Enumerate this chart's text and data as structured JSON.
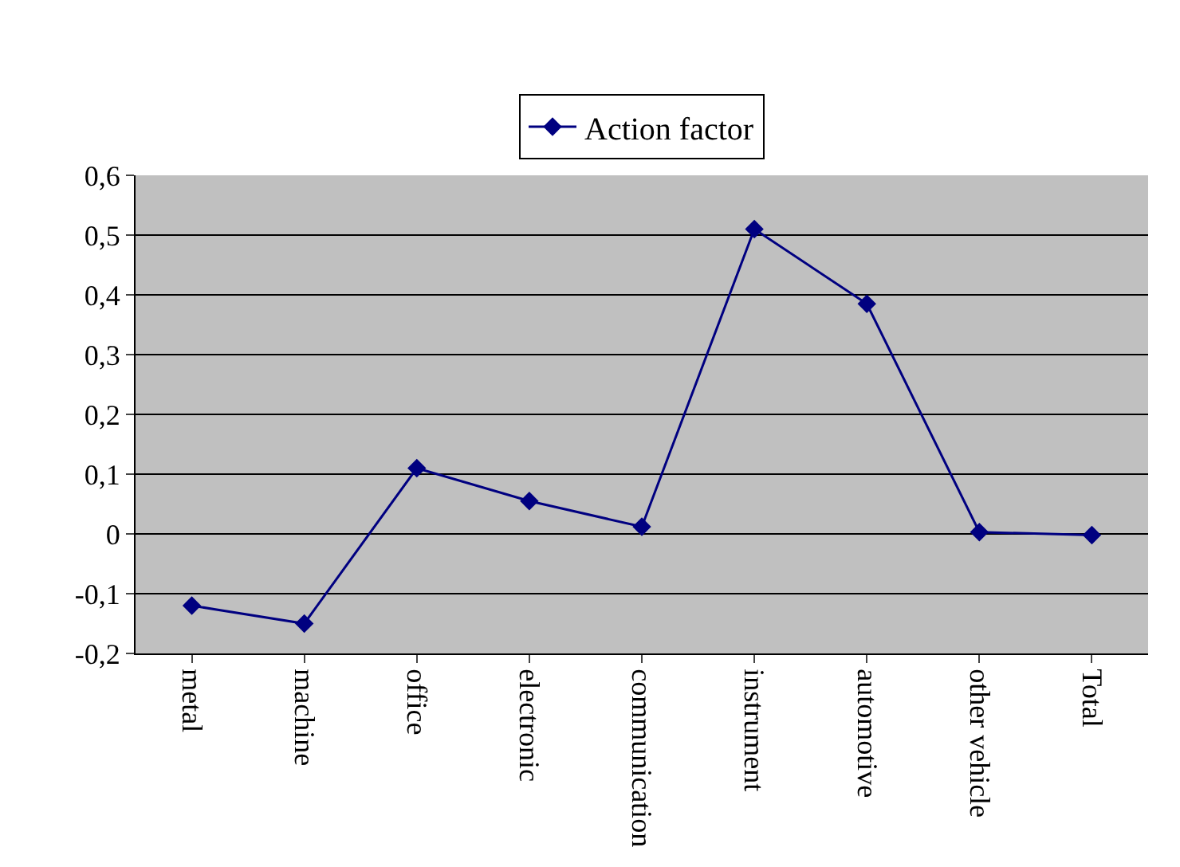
{
  "chart_data": {
    "type": "line",
    "categories": [
      "metal",
      "machine",
      "office",
      "electronic",
      "communication",
      "instrument",
      "automotive",
      "other vehicle",
      "Total"
    ],
    "series": [
      {
        "name": "Action factor",
        "color": "#000080",
        "values": [
          -0.12,
          -0.15,
          0.11,
          0.055,
          0.012,
          0.51,
          0.385,
          0.003,
          -0.002
        ]
      }
    ],
    "ylim": [
      -0.2,
      0.6
    ],
    "yticks": [
      {
        "value": -0.2,
        "label": "-0,2"
      },
      {
        "value": -0.1,
        "label": "-0,1"
      },
      {
        "value": 0,
        "label": "0"
      },
      {
        "value": 0.1,
        "label": "0,1"
      },
      {
        "value": 0.2,
        "label": "0,2"
      },
      {
        "value": 0.3,
        "label": "0,3"
      },
      {
        "value": 0.4,
        "label": "0,4"
      },
      {
        "value": 0.5,
        "label": "0,5"
      },
      {
        "value": 0.6,
        "label": "0,6"
      }
    ],
    "grid": "y",
    "legend": "top",
    "marker": "diamond",
    "line_style": "solid"
  }
}
